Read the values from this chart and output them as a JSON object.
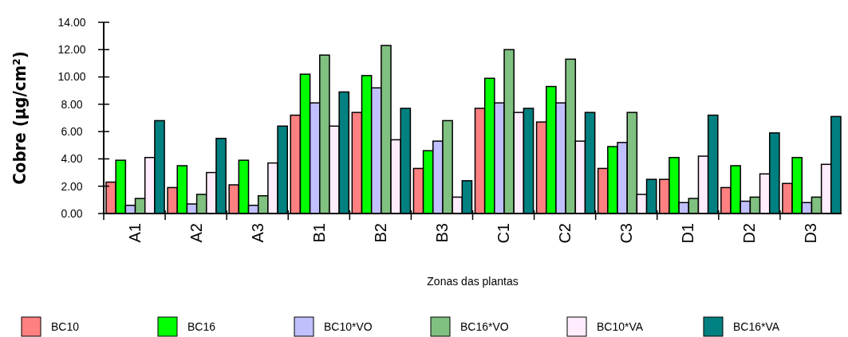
{
  "chart_data": {
    "type": "bar",
    "xlabel": "Zonas das plantas",
    "ylabel": "Cobre (μg/cm²)",
    "categories": [
      "A1",
      "A2",
      "A3",
      "B1",
      "B2",
      "B3",
      "C1",
      "C2",
      "C3",
      "D1",
      "D2",
      "D3"
    ],
    "series": [
      {
        "name": "BC10",
        "color": "#ff8080",
        "values": [
          2.3,
          1.9,
          2.1,
          7.2,
          7.4,
          3.3,
          7.7,
          6.7,
          3.3,
          2.5,
          1.9,
          2.2
        ]
      },
      {
        "name": "BC16",
        "color": "#00ff00",
        "values": [
          3.9,
          3.5,
          3.9,
          10.2,
          10.1,
          4.6,
          9.9,
          9.3,
          4.9,
          4.1,
          3.5,
          4.1
        ]
      },
      {
        "name": "BC10*VO",
        "color": "#c0c0ff",
        "values": [
          0.6,
          0.7,
          0.6,
          8.1,
          9.2,
          5.3,
          8.1,
          8.1,
          5.2,
          0.8,
          0.9,
          0.8
        ]
      },
      {
        "name": "BC16*VO",
        "color": "#80c080",
        "values": [
          1.1,
          1.4,
          1.3,
          11.6,
          12.3,
          6.8,
          12.0,
          11.3,
          7.4,
          1.1,
          1.2,
          1.2
        ]
      },
      {
        "name": "BC10*VA",
        "color": "#ffecfc",
        "values": [
          4.1,
          3.0,
          3.7,
          6.4,
          5.4,
          1.2,
          7.4,
          5.3,
          1.4,
          4.2,
          2.9,
          3.6
        ]
      },
      {
        "name": "BC16*VA",
        "color": "#008080",
        "values": [
          6.8,
          5.5,
          6.4,
          8.9,
          7.7,
          2.4,
          7.7,
          7.4,
          2.5,
          7.2,
          5.9,
          7.1
        ]
      }
    ],
    "ylim": [
      0,
      14
    ],
    "yticks": [
      {
        "value": 0,
        "label": "0.00"
      },
      {
        "value": 2,
        "label": "2.00"
      },
      {
        "value": 4,
        "label": "4.00"
      },
      {
        "value": 6,
        "label": "6.00"
      },
      {
        "value": 8,
        "label": "8.00"
      },
      {
        "value": 10,
        "label": "10.00"
      },
      {
        "value": 12,
        "label": "12.00"
      },
      {
        "value": 14,
        "label": "14.00"
      }
    ],
    "grid": false,
    "legend": "bottom"
  }
}
